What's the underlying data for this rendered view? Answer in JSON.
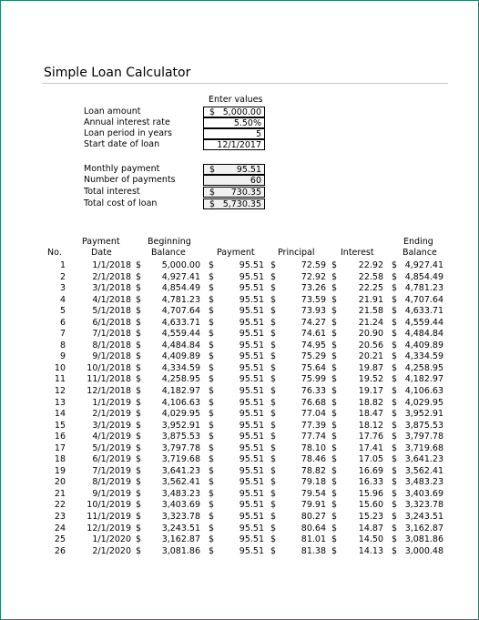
{
  "title": "Simple Loan Calculator",
  "enter_values": "Enter values",
  "inputs": [
    {
      "label": "Loan amount",
      "currency": "$",
      "value": "5,000.00"
    },
    {
      "label": "Annual interest rate",
      "currency": "",
      "value": "5.50%"
    },
    {
      "label": "Loan period in years",
      "currency": "",
      "value": "5"
    },
    {
      "label": "Start date of loan",
      "currency": "",
      "value": "12/1/2017"
    }
  ],
  "outputs": [
    {
      "label": "Monthly payment",
      "currency": "$",
      "value": "95.51"
    },
    {
      "label": "Number of payments",
      "currency": "",
      "value": "60"
    },
    {
      "label": "Total interest",
      "currency": "$",
      "value": "730.35"
    },
    {
      "label": "Total cost of loan",
      "currency": "$",
      "value": "5,730.35"
    }
  ],
  "headers": {
    "no": "No.",
    "payment_date_1": "Payment",
    "payment_date_2": "Date",
    "beginning_1": "Beginning",
    "beginning_2": "Balance",
    "payment": "Payment",
    "principal": "Principal",
    "interest": "Interest",
    "ending_1": "Ending",
    "ending_2": "Balance"
  },
  "currency_symbol": "$",
  "schedule": [
    {
      "no": "1",
      "date": "1/1/2018",
      "begin": "5,000.00",
      "payment": "95.51",
      "principal": "72.59",
      "interest": "22.92",
      "end": "4,927.41"
    },
    {
      "no": "2",
      "date": "2/1/2018",
      "begin": "4,927.41",
      "payment": "95.51",
      "principal": "72.92",
      "interest": "22.58",
      "end": "4,854.49"
    },
    {
      "no": "3",
      "date": "3/1/2018",
      "begin": "4,854.49",
      "payment": "95.51",
      "principal": "73.26",
      "interest": "22.25",
      "end": "4,781.23"
    },
    {
      "no": "4",
      "date": "4/1/2018",
      "begin": "4,781.23",
      "payment": "95.51",
      "principal": "73.59",
      "interest": "21.91",
      "end": "4,707.64"
    },
    {
      "no": "5",
      "date": "5/1/2018",
      "begin": "4,707.64",
      "payment": "95.51",
      "principal": "73.93",
      "interest": "21.58",
      "end": "4,633.71"
    },
    {
      "no": "6",
      "date": "6/1/2018",
      "begin": "4,633.71",
      "payment": "95.51",
      "principal": "74.27",
      "interest": "21.24",
      "end": "4,559.44"
    },
    {
      "no": "7",
      "date": "7/1/2018",
      "begin": "4,559.44",
      "payment": "95.51",
      "principal": "74.61",
      "interest": "20.90",
      "end": "4,484.84"
    },
    {
      "no": "8",
      "date": "8/1/2018",
      "begin": "4,484.84",
      "payment": "95.51",
      "principal": "74.95",
      "interest": "20.56",
      "end": "4,409.89"
    },
    {
      "no": "9",
      "date": "9/1/2018",
      "begin": "4,409.89",
      "payment": "95.51",
      "principal": "75.29",
      "interest": "20.21",
      "end": "4,334.59"
    },
    {
      "no": "10",
      "date": "10/1/2018",
      "begin": "4,334.59",
      "payment": "95.51",
      "principal": "75.64",
      "interest": "19.87",
      "end": "4,258.95"
    },
    {
      "no": "11",
      "date": "11/1/2018",
      "begin": "4,258.95",
      "payment": "95.51",
      "principal": "75.99",
      "interest": "19.52",
      "end": "4,182.97"
    },
    {
      "no": "12",
      "date": "12/1/2018",
      "begin": "4,182.97",
      "payment": "95.51",
      "principal": "76.33",
      "interest": "19.17",
      "end": "4,106.63"
    },
    {
      "no": "13",
      "date": "1/1/2019",
      "begin": "4,106.63",
      "payment": "95.51",
      "principal": "76.68",
      "interest": "18.82",
      "end": "4,029.95"
    },
    {
      "no": "14",
      "date": "2/1/2019",
      "begin": "4,029.95",
      "payment": "95.51",
      "principal": "77.04",
      "interest": "18.47",
      "end": "3,952.91"
    },
    {
      "no": "15",
      "date": "3/1/2019",
      "begin": "3,952.91",
      "payment": "95.51",
      "principal": "77.39",
      "interest": "18.12",
      "end": "3,875.53"
    },
    {
      "no": "16",
      "date": "4/1/2019",
      "begin": "3,875.53",
      "payment": "95.51",
      "principal": "77.74",
      "interest": "17.76",
      "end": "3,797.78"
    },
    {
      "no": "17",
      "date": "5/1/2019",
      "begin": "3,797.78",
      "payment": "95.51",
      "principal": "78.10",
      "interest": "17.41",
      "end": "3,719.68"
    },
    {
      "no": "18",
      "date": "6/1/2019",
      "begin": "3,719.68",
      "payment": "95.51",
      "principal": "78.46",
      "interest": "17.05",
      "end": "3,641.23"
    },
    {
      "no": "19",
      "date": "7/1/2019",
      "begin": "3,641.23",
      "payment": "95.51",
      "principal": "78.82",
      "interest": "16.69",
      "end": "3,562.41"
    },
    {
      "no": "20",
      "date": "8/1/2019",
      "begin": "3,562.41",
      "payment": "95.51",
      "principal": "79.18",
      "interest": "16.33",
      "end": "3,483.23"
    },
    {
      "no": "21",
      "date": "9/1/2019",
      "begin": "3,483.23",
      "payment": "95.51",
      "principal": "79.54",
      "interest": "15.96",
      "end": "3,403.69"
    },
    {
      "no": "22",
      "date": "10/1/2019",
      "begin": "3,403.69",
      "payment": "95.51",
      "principal": "79.91",
      "interest": "15.60",
      "end": "3,323.78"
    },
    {
      "no": "23",
      "date": "11/1/2019",
      "begin": "3,323.78",
      "payment": "95.51",
      "principal": "80.27",
      "interest": "15.23",
      "end": "3,243.51"
    },
    {
      "no": "24",
      "date": "12/1/2019",
      "begin": "3,243.51",
      "payment": "95.51",
      "principal": "80.64",
      "interest": "14.87",
      "end": "3,162.87"
    },
    {
      "no": "25",
      "date": "1/1/2020",
      "begin": "3,162.87",
      "payment": "95.51",
      "principal": "81.01",
      "interest": "14.50",
      "end": "3,081.86"
    },
    {
      "no": "26",
      "date": "2/1/2020",
      "begin": "3,081.86",
      "payment": "95.51",
      "principal": "81.38",
      "interest": "14.13",
      "end": "3,000.48"
    }
  ]
}
